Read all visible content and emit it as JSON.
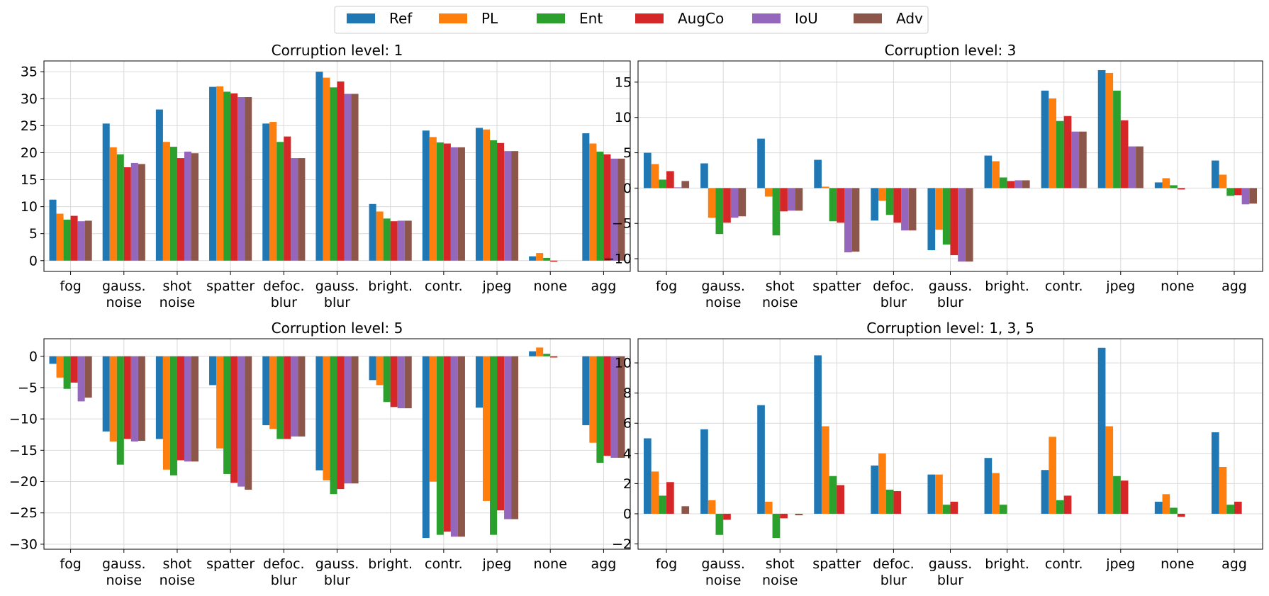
{
  "legend": {
    "entries": [
      {
        "name": "Ref",
        "color": "#1f77b4"
      },
      {
        "name": "PL",
        "color": "#ff7f0e"
      },
      {
        "name": "Ent",
        "color": "#2ca02c"
      },
      {
        "name": "AugCo",
        "color": "#d62728"
      },
      {
        "name": "IoU",
        "color": "#9467bd"
      },
      {
        "name": "Adv",
        "color": "#8c564b"
      }
    ],
    "placement": "top-center"
  },
  "chart_data": [
    {
      "type": "bar",
      "title": "Corruption level: 1",
      "categories": [
        "fog",
        "gauss.\nnoise",
        "shot\nnoise",
        "spatter",
        "defoc.\nblur",
        "gauss.\nblur",
        "bright.",
        "contr.",
        "jpeg",
        "none",
        "agg"
      ],
      "ylim": [
        -2,
        37
      ],
      "yticks": [
        0,
        5,
        10,
        15,
        20,
        25,
        30,
        35
      ],
      "ytick_labels": [
        "0",
        "5",
        "10",
        "15",
        "20",
        "25",
        "30",
        "35"
      ],
      "grid": true,
      "series": [
        {
          "name": "Ref",
          "values": [
            11.3,
            25.4,
            28.0,
            32.2,
            25.4,
            35.0,
            10.5,
            24.1,
            24.6,
            0.8,
            23.6
          ]
        },
        {
          "name": "PL",
          "values": [
            8.7,
            21.0,
            22.0,
            32.3,
            25.7,
            33.9,
            9.1,
            22.9,
            24.3,
            1.4,
            21.7
          ]
        },
        {
          "name": "Ent",
          "values": [
            7.6,
            19.7,
            21.1,
            31.3,
            22.0,
            32.1,
            7.8,
            21.9,
            22.3,
            0.5,
            20.2
          ]
        },
        {
          "name": "AugCo",
          "values": [
            8.3,
            17.3,
            19.0,
            31.0,
            23.0,
            33.2,
            7.3,
            21.7,
            21.8,
            -0.2,
            19.7
          ]
        },
        {
          "name": "IoU",
          "values": [
            7.3,
            18.1,
            20.2,
            30.3,
            19.0,
            30.9,
            7.4,
            21.0,
            20.3,
            0.0,
            18.9
          ]
        },
        {
          "name": "Adv",
          "values": [
            7.4,
            17.9,
            19.9,
            30.3,
            19.0,
            30.9,
            7.4,
            21.0,
            20.3,
            0.0,
            18.9
          ]
        }
      ]
    },
    {
      "type": "bar",
      "title": "Corruption level: 3",
      "categories": [
        "fog",
        "gauss.\nnoise",
        "shot\nnoise",
        "spatter",
        "defoc.\nblur",
        "gauss.\nblur",
        "bright.",
        "contr.",
        "jpeg",
        "none",
        "agg"
      ],
      "ylim": [
        -11.8,
        18
      ],
      "yticks": [
        -10,
        -5,
        0,
        5,
        10,
        15
      ],
      "ytick_labels": [
        "−10",
        "−5",
        "0",
        "5",
        "10",
        "15"
      ],
      "grid": true,
      "series": [
        {
          "name": "Ref",
          "values": [
            5.0,
            3.5,
            7.0,
            4.0,
            -4.6,
            -8.8,
            4.6,
            13.8,
            16.7,
            0.8,
            3.9
          ]
        },
        {
          "name": "PL",
          "values": [
            3.4,
            -4.2,
            -1.2,
            0.2,
            -1.8,
            -5.9,
            3.8,
            12.7,
            16.3,
            1.4,
            1.9
          ]
        },
        {
          "name": "Ent",
          "values": [
            1.2,
            -6.5,
            -6.7,
            -4.7,
            -3.8,
            -8.0,
            1.5,
            9.5,
            13.8,
            0.4,
            -1.1
          ]
        },
        {
          "name": "AugCo",
          "values": [
            2.4,
            -4.9,
            -3.3,
            -4.9,
            -4.9,
            -9.5,
            1.0,
            10.2,
            9.6,
            -0.2,
            -1.0
          ]
        },
        {
          "name": "IoU",
          "values": [
            0.1,
            -4.2,
            -3.2,
            -9.1,
            -6.0,
            -10.4,
            1.1,
            8.0,
            5.9,
            0.0,
            -2.3
          ]
        },
        {
          "name": "Adv",
          "values": [
            1.0,
            -4.0,
            -3.2,
            -9.0,
            -6.0,
            -10.4,
            1.1,
            8.0,
            5.9,
            0.0,
            -2.2
          ]
        }
      ]
    },
    {
      "type": "bar",
      "title": "Corruption level: 5",
      "categories": [
        "fog",
        "gauss.\nnoise",
        "shot\nnoise",
        "spatter",
        "defoc.\nblur",
        "gauss.\nblur",
        "bright.",
        "contr.",
        "jpeg",
        "none",
        "agg"
      ],
      "ylim": [
        -30.8,
        2.8
      ],
      "yticks": [
        -30,
        -25,
        -20,
        -15,
        -10,
        -5,
        0
      ],
      "ytick_labels": [
        "−30",
        "−25",
        "−20",
        "−15",
        "−10",
        "−5",
        "0"
      ],
      "grid": true,
      "series": [
        {
          "name": "Ref",
          "values": [
            -1.2,
            -12.0,
            -13.2,
            -4.6,
            -11.0,
            -18.2,
            -3.8,
            -29.0,
            -8.2,
            0.8,
            -11.0
          ]
        },
        {
          "name": "PL",
          "values": [
            -3.4,
            -13.6,
            -18.1,
            -14.7,
            -11.6,
            -19.8,
            -4.6,
            -20.0,
            -23.1,
            1.4,
            -13.8
          ]
        },
        {
          "name": "Ent",
          "values": [
            -5.2,
            -17.3,
            -19.0,
            -18.8,
            -13.2,
            -22.0,
            -7.3,
            -28.5,
            -28.5,
            0.4,
            -17.0
          ]
        },
        {
          "name": "AugCo",
          "values": [
            -4.2,
            -13.2,
            -16.6,
            -20.2,
            -13.2,
            -21.2,
            -8.1,
            -28.0,
            -24.6,
            -0.2,
            -15.9
          ]
        },
        {
          "name": "IoU",
          "values": [
            -7.2,
            -13.6,
            -16.8,
            -20.8,
            -12.8,
            -20.3,
            -8.3,
            -28.8,
            -26.0,
            0.0,
            -16.2
          ]
        },
        {
          "name": "Adv",
          "values": [
            -6.6,
            -13.5,
            -16.8,
            -21.3,
            -12.8,
            -20.3,
            -8.3,
            -28.8,
            -26.0,
            0.0,
            -16.2
          ]
        }
      ]
    },
    {
      "type": "bar",
      "title": "Corruption level: 1, 3, 5",
      "categories": [
        "fog",
        "gauss.\nnoise",
        "shot\nnoise",
        "spatter",
        "defoc.\nblur",
        "gauss.\nblur",
        "bright.",
        "contr.",
        "jpeg",
        "none",
        "agg"
      ],
      "ylim": [
        -2.35,
        11.6
      ],
      "yticks": [
        -2,
        0,
        2,
        4,
        6,
        8,
        10
      ],
      "ytick_labels": [
        "−2",
        "0",
        "2",
        "4",
        "6",
        "8",
        "10"
      ],
      "grid": true,
      "series": [
        {
          "name": "Ref",
          "values": [
            5.0,
            5.6,
            7.2,
            10.5,
            3.2,
            2.6,
            3.7,
            2.9,
            11.0,
            0.8,
            5.4
          ]
        },
        {
          "name": "PL",
          "values": [
            2.8,
            0.9,
            0.8,
            5.8,
            4.0,
            2.6,
            2.7,
            5.1,
            5.8,
            1.3,
            3.1
          ]
        },
        {
          "name": "Ent",
          "values": [
            1.2,
            -1.4,
            -1.6,
            2.5,
            1.6,
            0.6,
            0.6,
            0.9,
            2.5,
            0.4,
            0.6
          ]
        },
        {
          "name": "AugCo",
          "values": [
            2.1,
            -0.4,
            -0.3,
            1.9,
            1.5,
            0.8,
            0.0,
            1.2,
            2.2,
            -0.2,
            0.8
          ]
        },
        {
          "name": "IoU",
          "values": [
            0.0,
            0.0,
            0.0,
            0.0,
            0.0,
            0.0,
            0.0,
            0.0,
            0.0,
            0.0,
            0.0
          ]
        },
        {
          "name": "Adv",
          "values": [
            0.5,
            0.0,
            -0.1,
            0.0,
            0.0,
            0.0,
            0.0,
            0.0,
            0.0,
            0.0,
            0.0
          ]
        }
      ]
    }
  ]
}
